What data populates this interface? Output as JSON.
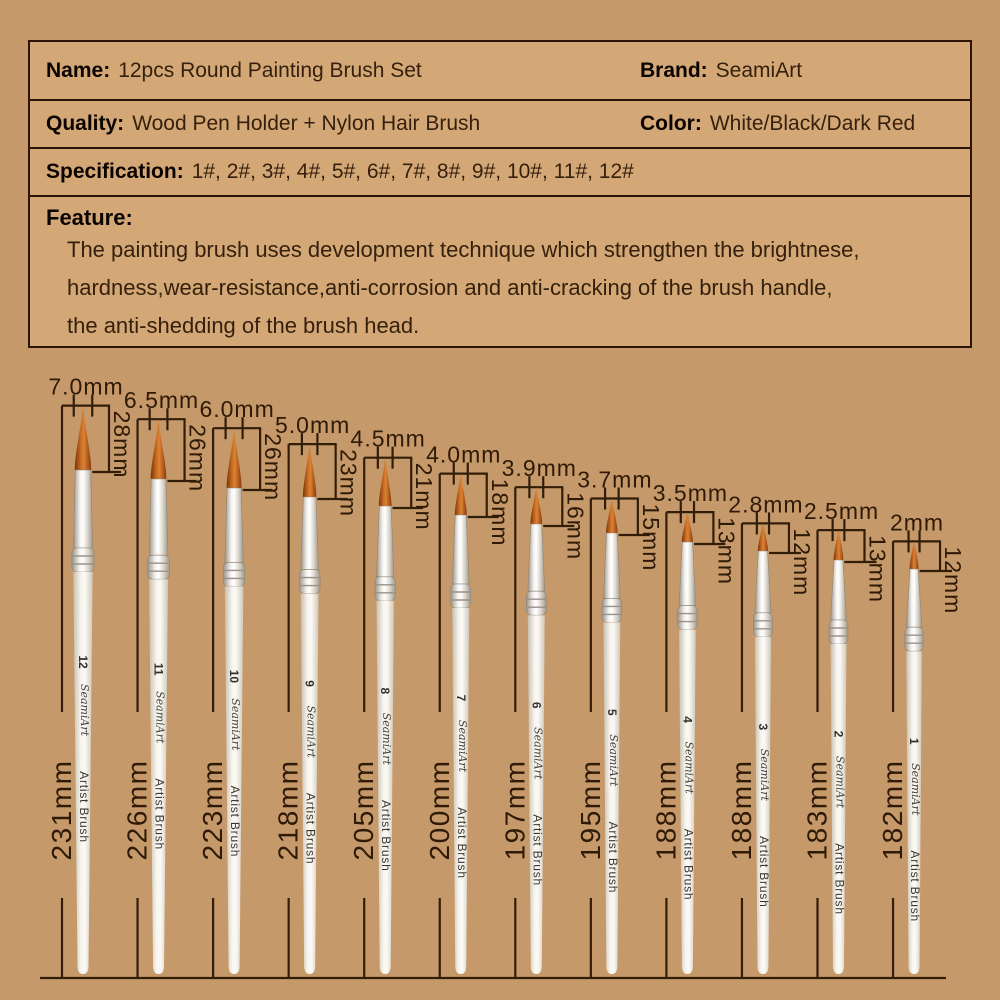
{
  "table": {
    "rows": [
      {
        "pairs": [
          {
            "label": "Name:",
            "value": "12pcs Round Painting Brush Set"
          },
          {
            "label": "Brand:",
            "value": "SeamiArt"
          }
        ]
      },
      {
        "pairs": [
          {
            "label": "Quality:",
            "value": "Wood Pen Holder + Nylon Hair Brush"
          },
          {
            "label": "Color:",
            "value": "White/Black/Dark Red"
          }
        ]
      },
      {
        "pairs": [
          {
            "label": "Specification:",
            "value": "1#, 2#, 3#, 4#, 5#, 6#, 7#, 8#, 9#, 10#, 11#, 12#"
          }
        ]
      }
    ],
    "feature": {
      "label": "Feature:",
      "lines": [
        "The painting brush uses development technique which strengthen the brightnese,",
        "hardness,wear-resistance,anti-corrosion and anti-cracking of the brush handle,",
        "the anti-shedding of the brush head."
      ]
    }
  },
  "diagram": {
    "handle_text": "Artist Brush",
    "logo_text": "SeamiArt",
    "brushes": [
      {
        "number": "12",
        "tip_width_label": "7.0mm",
        "tip_width_mm": 7.0,
        "bristle_length_label": "28mm",
        "bristle_length_mm": 28,
        "total_length_label": "231mm",
        "total_length_mm": 231
      },
      {
        "number": "11",
        "tip_width_label": "6.5mm",
        "tip_width_mm": 6.5,
        "bristle_length_label": "26mm",
        "bristle_length_mm": 26,
        "total_length_label": "226mm",
        "total_length_mm": 226
      },
      {
        "number": "10",
        "tip_width_label": "6.0mm",
        "tip_width_mm": 6.0,
        "bristle_length_label": "26mm",
        "bristle_length_mm": 26,
        "total_length_label": "223mm",
        "total_length_mm": 223
      },
      {
        "number": "9",
        "tip_width_label": "5.0mm",
        "tip_width_mm": 5.0,
        "bristle_length_label": "23mm",
        "bristle_length_mm": 23,
        "total_length_label": "218mm",
        "total_length_mm": 218
      },
      {
        "number": "8",
        "tip_width_label": "4.5mm",
        "tip_width_mm": 4.5,
        "bristle_length_label": "21mm",
        "bristle_length_mm": 21,
        "total_length_label": "205mm",
        "total_length_mm": 205
      },
      {
        "number": "7",
        "tip_width_label": "4.0mm",
        "tip_width_mm": 4.0,
        "bristle_length_label": "18mm",
        "bristle_length_mm": 18,
        "total_length_label": "200mm",
        "total_length_mm": 200
      },
      {
        "number": "6",
        "tip_width_label": "3.9mm",
        "tip_width_mm": 3.9,
        "bristle_length_label": "16mm",
        "bristle_length_mm": 16,
        "total_length_label": "197mm",
        "total_length_mm": 197
      },
      {
        "number": "5",
        "tip_width_label": "3.7mm",
        "tip_width_mm": 3.7,
        "bristle_length_label": "15mm",
        "bristle_length_mm": 15,
        "total_length_label": "195mm",
        "total_length_mm": 195
      },
      {
        "number": "4",
        "tip_width_label": "3.5mm",
        "tip_width_mm": 3.5,
        "bristle_length_label": "13mm",
        "bristle_length_mm": 13,
        "total_length_label": "188mm",
        "total_length_mm": 188
      },
      {
        "number": "3",
        "tip_width_label": "2.8mm",
        "tip_width_mm": 2.8,
        "bristle_length_label": "12mm",
        "bristle_length_mm": 12,
        "total_length_label": "188mm",
        "total_length_mm": 188
      },
      {
        "number": "2",
        "tip_width_label": "2.5mm",
        "tip_width_mm": 2.5,
        "bristle_length_label": "13mm",
        "bristle_length_mm": 13,
        "total_length_label": "183mm",
        "total_length_mm": 183
      },
      {
        "number": "1",
        "tip_width_label": "2mm",
        "tip_width_mm": 2.0,
        "bristle_length_label": "12mm",
        "bristle_length_mm": 12,
        "total_length_label": "182mm",
        "total_length_mm": 182
      }
    ]
  },
  "colors": {
    "background": "#c6996a",
    "panel": "#d3a876",
    "border": "#2b1306",
    "label_text": "#0a0300",
    "value_text": "#35200d",
    "dimension": "#311d08",
    "dimension_text": "#2e1a06",
    "bristle": "#c96f24",
    "ferrule": "#e9e5df",
    "handle": "#f7f4ee"
  }
}
